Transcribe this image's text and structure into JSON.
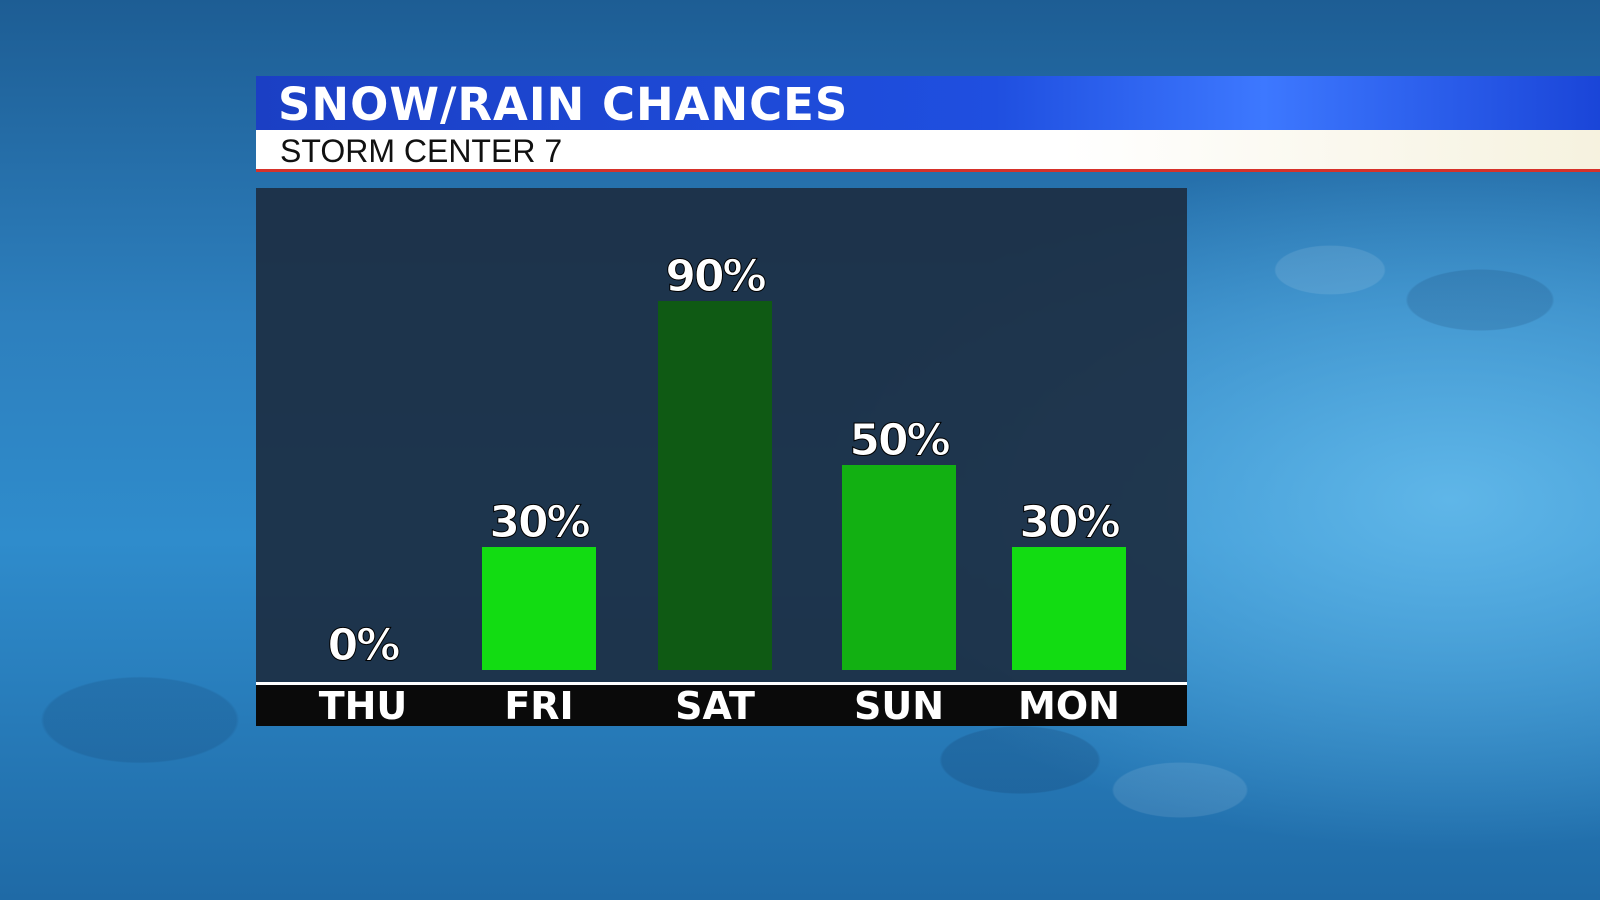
{
  "header": {
    "title": "SNOW/RAIN CHANCES",
    "subtitle": "STORM CENTER 7"
  },
  "colors": {
    "header_blue": "#1f4fe0",
    "accent_red": "#d6322a",
    "bar_low": "#12dc12",
    "bar_mid": "#12b012",
    "bar_high": "#0f5a14"
  },
  "chart_data": {
    "type": "bar",
    "categories": [
      "THU",
      "FRI",
      "SAT",
      "SUN",
      "MON"
    ],
    "values": [
      0,
      30,
      90,
      50,
      30
    ],
    "value_labels": [
      "0%",
      "30%",
      "90%",
      "50%",
      "30%"
    ],
    "bar_colors": [
      "#12dc12",
      "#12dc12",
      "#0f5a14",
      "#12b012",
      "#12dc12"
    ],
    "ylim": [
      0,
      100
    ],
    "grid": false,
    "legend": "none"
  }
}
